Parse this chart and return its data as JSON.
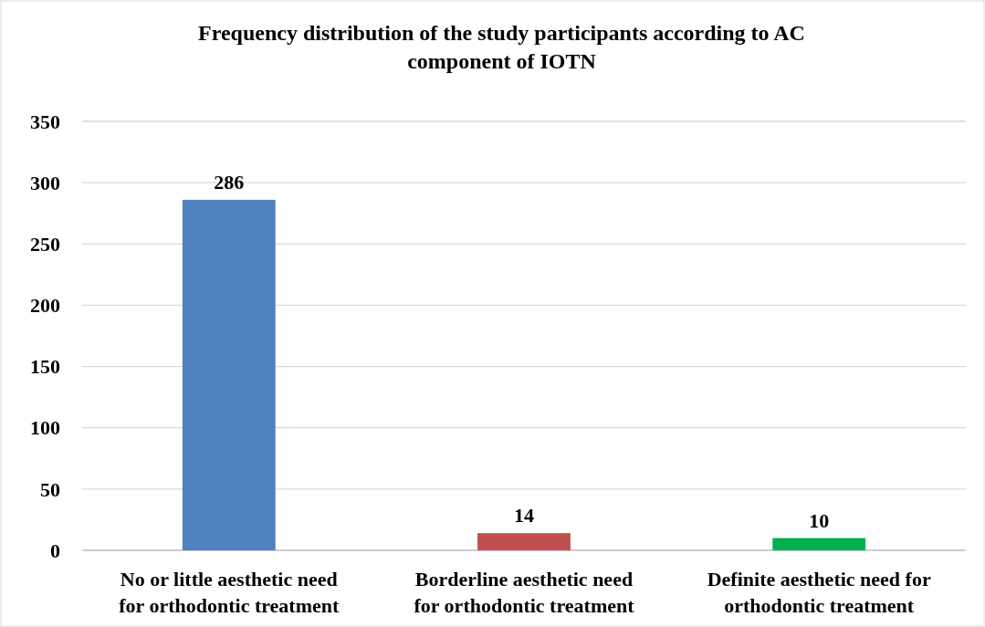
{
  "chart_data": {
    "type": "bar",
    "title": "Frequency distribution of the study participants according to AC component of IOTN",
    "categories": [
      "No or little aesthetic need for orthodontic treatment",
      "Borderline aesthetic need for orthodontic treatment",
      "Definite aesthetic need for orthodontic treatment"
    ],
    "values": [
      286,
      14,
      10
    ],
    "colors": [
      "#4f81bd",
      "#c0504d",
      "#00b050"
    ],
    "ylim": [
      0,
      350
    ],
    "yticks": [
      0,
      50,
      100,
      150,
      200,
      250,
      300,
      350
    ],
    "grid": "y",
    "data_labels": true
  }
}
